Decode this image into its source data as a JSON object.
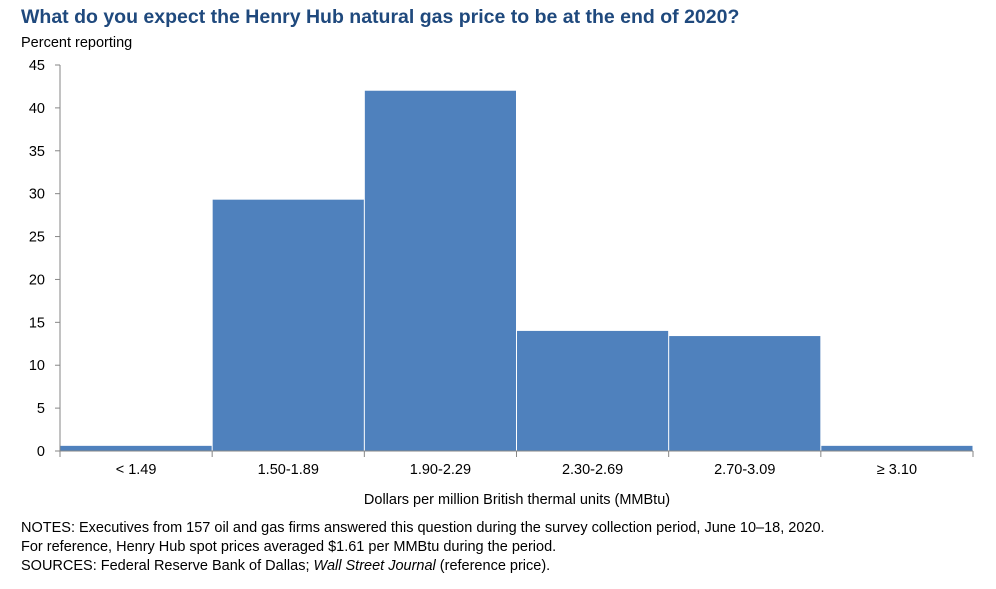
{
  "title": "What do you expect the Henry Hub natural gas price to be at the end of 2020?",
  "subtitle": "Percent reporting",
  "chart_data": {
    "type": "bar",
    "categories": [
      "< 1.49",
      "1.50-1.89",
      "1.90-2.29",
      "2.30-2.69",
      "2.70-3.09",
      "≥ 3.10"
    ],
    "series": [
      {
        "values": [
          0.6,
          29.3,
          42.0,
          14.0,
          13.4,
          0.6
        ]
      }
    ],
    "xlabel": "Dollars per million British thermal units (MMBtu)",
    "ylabel": "Percent reporting",
    "ylim": [
      0,
      45
    ],
    "yticks": [
      0,
      5,
      10,
      15,
      20,
      25,
      30,
      35,
      40,
      45
    ],
    "grid": false,
    "bar_color": "#4f81bd"
  },
  "notes": {
    "line1": "NOTES: Executives from 157 oil and gas firms answered this question during the survey collection period, June 10–18, 2020.",
    "line2": "For reference, Henry Hub spot prices averaged $1.61 per MMBtu during the period.",
    "line3_prefix": "SOURCES: Federal Reserve Bank of Dallas; ",
    "line3_italic": "Wall Street Journal",
    "line3_suffix": " (reference price)."
  }
}
